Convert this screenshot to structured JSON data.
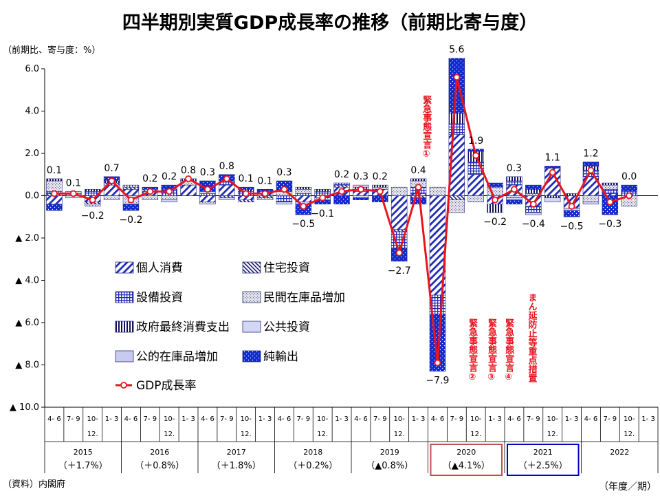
{
  "chart_data": {
    "type": "bar",
    "title": "四半期別実質GDP成長率の推移（前期比寄与度）",
    "ylabel": "（前期比、寄与度：%）",
    "xlabel": "（年度／期）",
    "source": "（資料）内閣府",
    "ylim": [
      -10,
      6
    ],
    "yticks": [
      {
        "v": 6,
        "label": "6.0"
      },
      {
        "v": 4,
        "label": "4.0"
      },
      {
        "v": 2,
        "label": "2.0"
      },
      {
        "v": 0,
        "label": "0.0"
      },
      {
        "v": -2,
        "label": "▲ 2.0"
      },
      {
        "v": -4,
        "label": "▲ 4.0"
      },
      {
        "v": -6,
        "label": "▲ 6.0"
      },
      {
        "v": -8,
        "label": "▲ 8.0"
      },
      {
        "v": -10,
        "label": "▲ 10.0"
      }
    ],
    "quarter_labels": [
      "4- 6",
      "7- 9",
      "10-12",
      "1- 3"
    ],
    "years": [
      {
        "year": "2015",
        "annual": "（＋1.7%）"
      },
      {
        "year": "2016",
        "annual": "（＋0.8%）"
      },
      {
        "year": "2017",
        "annual": "（＋1.8%）"
      },
      {
        "year": "2018",
        "annual": "（＋0.2%）"
      },
      {
        "year": "2019",
        "annual": "（▲0.8%）"
      },
      {
        "year": "2020",
        "annual": "（▲4.1%）"
      },
      {
        "year": "2021",
        "annual": "（＋2.5%）"
      },
      {
        "year": "2022",
        "annual": ""
      }
    ],
    "gdp_growth": [
      0.1,
      0.1,
      -0.2,
      0.7,
      -0.2,
      0.2,
      0.2,
      0.8,
      0.3,
      0.8,
      0.1,
      0.1,
      0.3,
      -0.5,
      -0.1,
      0.2,
      0.3,
      0.2,
      -2.7,
      0.4,
      -7.9,
      5.6,
      1.9,
      -0.2,
      0.3,
      -0.4,
      1.1,
      -0.5,
      1.2,
      -0.3,
      0.0
    ],
    "gdp_labels": [
      "0.1",
      "0.1",
      "−0.2",
      "0.7",
      "−0.2",
      "0.2",
      "0.2",
      "0.8",
      "0.3",
      "0.8",
      "0.1",
      "0.1",
      "0.3",
      "−0.5",
      "−0.1",
      "0.2",
      "0.3",
      "0.2",
      "−2.7",
      "0.4",
      "−7.9",
      "5.6",
      "1.9",
      "−0.2",
      "0.3",
      "−0.4",
      "1.1",
      "−0.5",
      "1.2",
      "−0.3",
      "0.0"
    ],
    "series_keys": [
      "personal",
      "housing",
      "capex",
      "inventory",
      "govcons",
      "publicinv",
      "publicinventory",
      "netexports"
    ],
    "series": [
      {
        "key": "personal",
        "name": "個人消費",
        "values": [
          -0.4,
          0.0,
          -0.3,
          0.5,
          0.3,
          0.2,
          0.0,
          0.5,
          -0.3,
          0.5,
          -0.2,
          0.2,
          0.0,
          -0.3,
          -0.1,
          0.4,
          0.2,
          0.3,
          -1.6,
          0.1,
          -4.7,
          2.9,
          1.0,
          -0.4,
          0.5,
          -0.5,
          1.3,
          -0.6,
          0.9,
          0.1,
          0.0
        ]
      },
      {
        "key": "housing",
        "name": "住宅投資",
        "values": [
          0.1,
          0.0,
          -0.1,
          0.1,
          0.1,
          0.1,
          0.0,
          0.0,
          0.0,
          -0.1,
          -0.1,
          -0.1,
          0.0,
          0.0,
          0.0,
          0.1,
          0.0,
          0.0,
          -0.1,
          -0.1,
          0.0,
          -0.2,
          0.0,
          0.0,
          0.0,
          0.0,
          0.0,
          0.0,
          0.0,
          0.0,
          0.0
        ]
      },
      {
        "key": "capex",
        "name": "設備投資",
        "values": [
          0.1,
          0.1,
          0.2,
          0.0,
          0.1,
          0.0,
          0.3,
          0.0,
          0.1,
          0.2,
          0.2,
          0.0,
          -0.3,
          0.1,
          0.2,
          0.1,
          0.1,
          0.0,
          -0.8,
          0.3,
          -0.9,
          0.5,
          0.6,
          0.0,
          0.2,
          -0.3,
          0.0,
          0.0,
          0.3,
          0.2,
          0.2
        ]
      },
      {
        "key": "inventory",
        "name": "民間在庫品増加",
        "values": [
          0.5,
          0.1,
          -0.1,
          -0.2,
          -0.4,
          -0.2,
          -0.2,
          0.2,
          -0.1,
          0.0,
          0.0,
          -0.1,
          0.2,
          0.2,
          -0.1,
          0.0,
          -0.1,
          0.1,
          0.4,
          0.3,
          0.4,
          -0.6,
          -0.3,
          0.4,
          -0.1,
          0.1,
          0.0,
          0.0,
          -0.3,
          0.2,
          -0.5
        ]
      },
      {
        "key": "govcons",
        "name": "政府最終消費支出",
        "values": [
          0.1,
          0.0,
          0.1,
          0.1,
          0.0,
          0.0,
          0.0,
          0.1,
          0.0,
          0.0,
          0.1,
          0.0,
          0.0,
          0.1,
          0.1,
          0.0,
          0.1,
          0.1,
          0.0,
          0.1,
          0.0,
          0.5,
          0.5,
          -0.4,
          0.2,
          0.2,
          -0.1,
          0.1,
          0.2,
          0.1,
          0.0
        ]
      },
      {
        "key": "publicinv",
        "name": "公共投資",
        "values": [
          0.0,
          -0.1,
          0.0,
          0.0,
          0.0,
          0.0,
          -0.1,
          0.0,
          0.1,
          -0.1,
          0.0,
          0.0,
          -0.1,
          -0.1,
          0.0,
          0.0,
          0.1,
          0.0,
          0.0,
          0.0,
          0.0,
          0.0,
          0.0,
          0.0,
          -0.1,
          -0.1,
          -0.2,
          -0.1,
          -0.1,
          0.0,
          0.0
        ]
      },
      {
        "key": "publicinventory",
        "name": "公的在庫品増加",
        "values": [
          0.0,
          0.0,
          0.0,
          0.0,
          0.0,
          0.0,
          0.0,
          0.0,
          0.0,
          0.0,
          0.0,
          0.0,
          0.0,
          0.0,
          0.0,
          0.0,
          0.0,
          0.0,
          0.0,
          0.0,
          0.0,
          0.0,
          0.0,
          0.0,
          0.0,
          0.0,
          0.0,
          0.0,
          0.0,
          0.0,
          0.0
        ]
      },
      {
        "key": "netexports",
        "name": "純輸出",
        "values": [
          -0.3,
          0.0,
          0.0,
          0.2,
          -0.3,
          0.1,
          0.2,
          0.0,
          0.5,
          0.3,
          0.1,
          0.1,
          0.5,
          -0.5,
          -0.2,
          -0.4,
          -0.1,
          -0.3,
          -0.6,
          -0.3,
          -2.7,
          2.6,
          0.1,
          0.2,
          -0.2,
          0.2,
          0.1,
          -0.3,
          0.2,
          -0.9,
          0.3
        ]
      }
    ],
    "legend": [
      {
        "key": "personal",
        "label": "個人消費"
      },
      {
        "key": "housing",
        "label": "住宅投資"
      },
      {
        "key": "capex",
        "label": "設備投資"
      },
      {
        "key": "inventory",
        "label": "民間在庫品増加"
      },
      {
        "key": "govcons",
        "label": "政府最終消費支出"
      },
      {
        "key": "publicinv",
        "label": "公共投資"
      },
      {
        "key": "publicinventory",
        "label": "公的在庫品増加"
      },
      {
        "key": "netexports",
        "label": "純輸出"
      },
      {
        "key": "gdp",
        "label": "GDP成長率"
      }
    ],
    "annotations": [
      {
        "id": "emergency-1",
        "text": "緊急事態宣言①",
        "x_quarter": 19.9,
        "anchor_value": 4.75
      },
      {
        "id": "emergency-2",
        "text": "緊急事態宣言②",
        "x_quarter": 22.3,
        "anchor_value": -5.8
      },
      {
        "id": "emergency-3",
        "text": "緊急事態宣言③",
        "x_quarter": 23.3,
        "anchor_value": -5.8
      },
      {
        "id": "emergency-4",
        "text": "緊急事態宣言④",
        "x_quarter": 24.2,
        "anchor_value": -5.8
      },
      {
        "id": "semi-emergency",
        "text": "まん延防止等重点措置",
        "x_quarter": 25.4,
        "anchor_value": -4.6
      }
    ],
    "highlight_years": [
      {
        "year": "2020",
        "color": "#c0504d"
      },
      {
        "year": "2021",
        "color": "#0000c8"
      }
    ]
  }
}
